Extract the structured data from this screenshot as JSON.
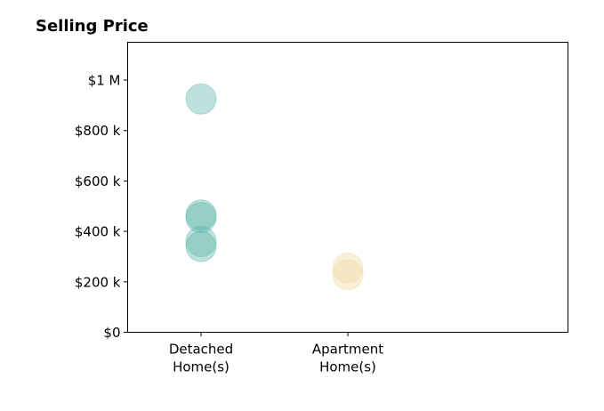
{
  "chart_data": {
    "type": "scatter",
    "title": "Selling Price",
    "xlabel": "",
    "ylabel": "",
    "categories": [
      [
        "Detached",
        "Home(s)"
      ],
      [
        "Apartment",
        "Home(s)"
      ]
    ],
    "xlim": [
      -0.5,
      2.5
    ],
    "ylim": [
      0,
      1150000
    ],
    "y_ticks": [
      0,
      200000,
      400000,
      600000,
      800000,
      1000000
    ],
    "y_tick_labels": [
      "$0",
      "$200 k",
      "$400 k",
      "$600 k",
      "$800 k",
      "$1 M"
    ],
    "grid": false,
    "series": [
      {
        "category_index": 0,
        "color": "#5ab4a8",
        "values": [
          925000,
          465000,
          455000,
          360000,
          340000
        ]
      },
      {
        "category_index": 1,
        "color": "#f0d9a0",
        "values": [
          255000,
          228000
        ]
      }
    ],
    "marker_alpha": 0.4
  }
}
